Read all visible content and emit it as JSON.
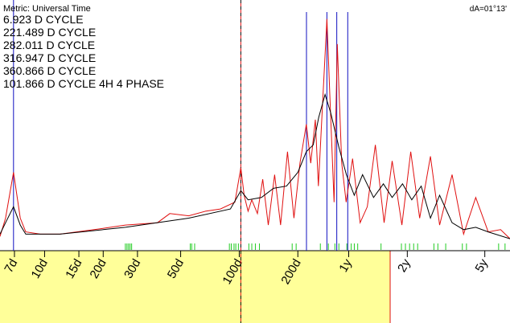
{
  "chart_data": {
    "type": "spectrum",
    "metric_label": "Metric: Universal Time",
    "corner_label": "dA=01°13'",
    "log_x": true,
    "xlim": [
      5.9,
      2460
    ],
    "ylim": [
      0,
      100
    ],
    "xticks": [
      {
        "value": 7,
        "label": "7d"
      },
      {
        "value": 10,
        "label": "10d"
      },
      {
        "value": 15,
        "label": "15d"
      },
      {
        "value": 20,
        "label": "20d"
      },
      {
        "value": 30,
        "label": "30d"
      },
      {
        "value": 50,
        "label": "50d"
      },
      {
        "value": 100,
        "label": "100d"
      },
      {
        "value": 200,
        "label": "200d"
      },
      {
        "value": 365,
        "label": "1y"
      },
      {
        "value": 730,
        "label": "2y"
      },
      {
        "value": 1826,
        "label": "5y"
      }
    ],
    "highlight_range": [
      5.9,
      596
    ],
    "cycles": [
      {
        "period": 6.923,
        "label": "6.923 D CYCLE"
      },
      {
        "period": 221.489,
        "label": "221.489 D CYCLE"
      },
      {
        "period": 282.011,
        "label": "282.011 D CYCLE"
      },
      {
        "period": 316.947,
        "label": "316.947 D CYCLE"
      },
      {
        "period": 360.866,
        "label": "360.866 D CYCLE"
      },
      {
        "period": 101.866,
        "label": "101.866 D CYCLE 4H 4 PHASE",
        "phase": true
      }
    ],
    "markers": [
      26,
      26.5,
      27,
      27.5,
      28,
      56,
      57,
      59,
      89,
      91,
      94,
      96,
      99,
      112,
      116,
      121,
      127,
      187,
      196,
      261,
      287,
      310,
      325,
      357,
      376,
      390,
      406,
      535,
      681,
      714,
      750,
      787,
      825,
      1000,
      1048,
      1150,
      1400,
      1470,
      2150,
      2320
    ],
    "marker_color": "#22cc22",
    "series": [
      {
        "color": "#e01010",
        "x": [
          5.9,
          6.3,
          6.92,
          7.5,
          8.0,
          9.5,
          12,
          18,
          26,
          38,
          44,
          55,
          67,
          80,
          95,
          101.9,
          106,
          111,
          116,
          124,
          132,
          141,
          152,
          163,
          177,
          191,
          205,
          221,
          233,
          246,
          255,
          272,
          282,
          292,
          307,
          319,
          336,
          354,
          382,
          418,
          455,
          500,
          555,
          610,
          685,
          760,
          845,
          960,
          1070,
          1240,
          1420,
          1640,
          1900,
          2200,
          2460
        ],
        "values": [
          2,
          10,
          30,
          10,
          4,
          3,
          3,
          5,
          7,
          8,
          12,
          11,
          13,
          14,
          17,
          32,
          20,
          13,
          18,
          12,
          27,
          7,
          29,
          7,
          39,
          10,
          34,
          51,
          34,
          53,
          24,
          71,
          97,
          64,
          17,
          86,
          34,
          17,
          36,
          8,
          15,
          42,
          8,
          35,
          7,
          39,
          10,
          37,
          7,
          29,
          3,
          19,
          4,
          5,
          1
        ]
      },
      {
        "color": "#000000",
        "x": [
          5.9,
          6.3,
          6.92,
          7.5,
          8,
          12,
          26,
          55,
          90,
          101.9,
          111,
          130,
          150,
          175,
          200,
          221,
          240,
          256,
          276,
          295,
          325,
          355,
          390,
          430,
          490,
          550,
          610,
          690,
          770,
          860,
          960,
          1070,
          1240,
          1420,
          1640,
          1900,
          2460
        ],
        "values": [
          3,
          8,
          15,
          7,
          3,
          3,
          6,
          10,
          14,
          22,
          18,
          19,
          23,
          24,
          30,
          39,
          42,
          54,
          64,
          56,
          41,
          29,
          20,
          29,
          19,
          25,
          19,
          25,
          18,
          24,
          10,
          20,
          8,
          5,
          6,
          4,
          1
        ]
      }
    ]
  }
}
